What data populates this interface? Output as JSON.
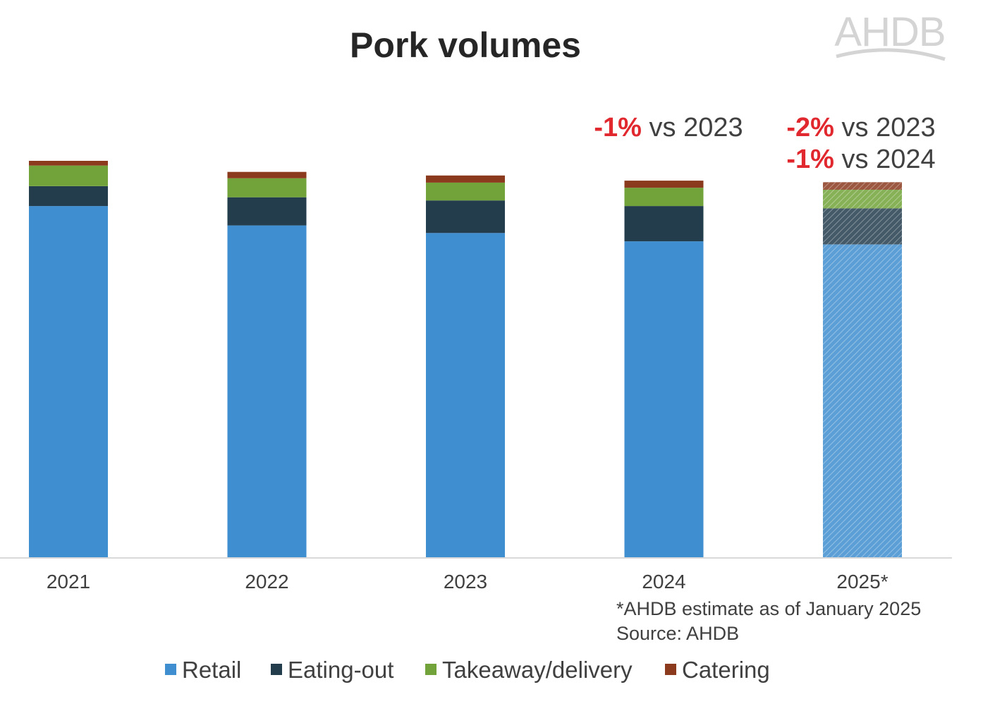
{
  "logo": {
    "text": "AHDB"
  },
  "chart_data": {
    "type": "bar",
    "stacked": true,
    "title": "Pork volumes",
    "xlabel": "",
    "ylabel": "",
    "categories": [
      "2021",
      "2022",
      "2023",
      "2024",
      "2025*"
    ],
    "series": [
      {
        "name": "Retail",
        "color": "#3f8ecf",
        "values": [
          88.6,
          83.7,
          81.8,
          79.7,
          78.9
        ]
      },
      {
        "name": "Eating-out",
        "color": "#233d4d",
        "values": [
          5.0,
          7.1,
          8.2,
          8.9,
          9.1
        ]
      },
      {
        "name": "Takeaway/delivery",
        "color": "#72a33a",
        "values": [
          5.2,
          4.8,
          4.5,
          4.6,
          4.7
        ]
      },
      {
        "name": "Catering",
        "color": "#8b3a1e",
        "values": [
          1.2,
          1.6,
          1.8,
          1.8,
          1.9
        ]
      }
    ],
    "estimated_categories": [
      "2025*"
    ],
    "ylim": [
      0,
      100
    ],
    "grid": false,
    "legend_position": "bottom",
    "annotations": [
      {
        "category": "2024",
        "lines": [
          {
            "pct": "-1%",
            "text": " vs 2023"
          }
        ]
      },
      {
        "category": "2025*",
        "lines": [
          {
            "pct": "-2%",
            "text": " vs 2023"
          },
          {
            "pct": "-1%",
            "text": " vs 2024"
          }
        ]
      }
    ],
    "footnotes": [
      "*AHDB estimate as of January 2025",
      "Source: AHDB"
    ]
  }
}
